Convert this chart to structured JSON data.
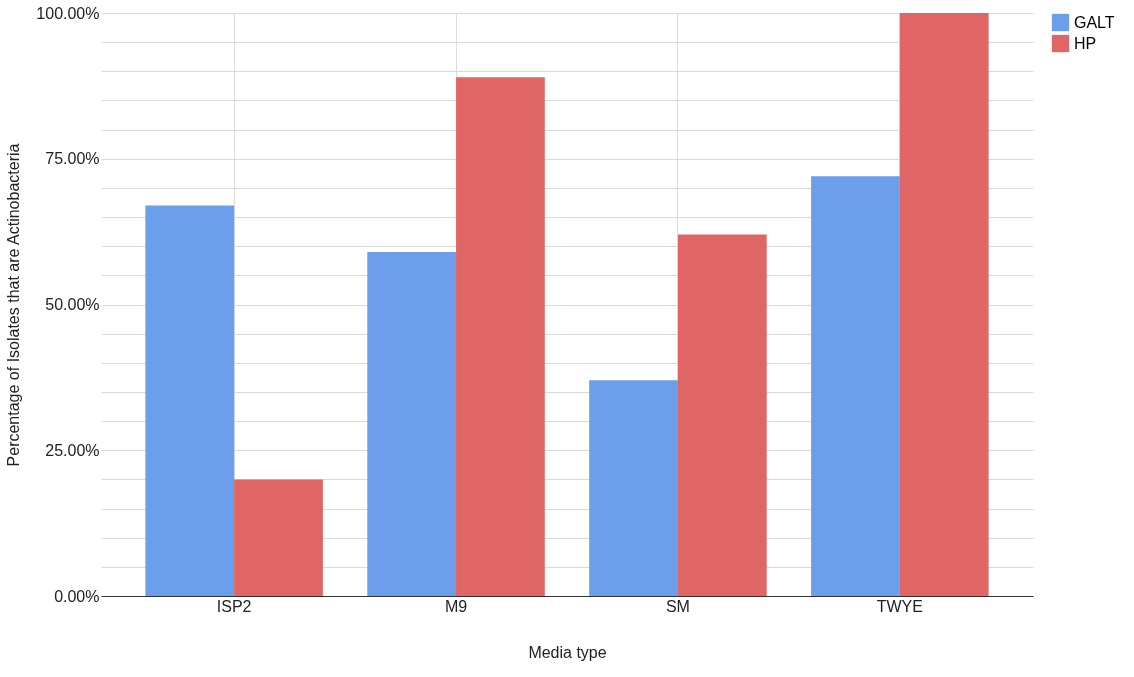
{
  "chart_data": {
    "type": "bar",
    "xlabel": "Media type",
    "ylabel": "Percentage of Isolates that are Actinobacteria",
    "categories": [
      "ISP2",
      "M9",
      "SM",
      "TWYE"
    ],
    "series": [
      {
        "name": "GALT",
        "color": "#6d9eeb",
        "values": [
          67,
          59,
          37,
          72
        ]
      },
      {
        "name": "HP",
        "color": "#e06666",
        "values": [
          20,
          89,
          62,
          100
        ]
      }
    ],
    "ylim": [
      0,
      100
    ],
    "yticks": [
      {
        "value": 0,
        "label": "0.00%"
      },
      {
        "value": 5,
        "label": null
      },
      {
        "value": 10,
        "label": null
      },
      {
        "value": 15,
        "label": null
      },
      {
        "value": 20,
        "label": null
      },
      {
        "value": 25,
        "label": "25.00%"
      },
      {
        "value": 30,
        "label": null
      },
      {
        "value": 35,
        "label": null
      },
      {
        "value": 40,
        "label": null
      },
      {
        "value": 45,
        "label": null
      },
      {
        "value": 50,
        "label": "50.00%"
      },
      {
        "value": 55,
        "label": null
      },
      {
        "value": 60,
        "label": null
      },
      {
        "value": 65,
        "label": null
      },
      {
        "value": 70,
        "label": null
      },
      {
        "value": 75,
        "label": "75.00%"
      },
      {
        "value": 80,
        "label": null
      },
      {
        "value": 85,
        "label": null
      },
      {
        "value": 90,
        "label": null
      },
      {
        "value": 95,
        "label": null
      },
      {
        "value": 100,
        "label": "100.00%"
      }
    ],
    "grid": true,
    "legend": "right"
  }
}
